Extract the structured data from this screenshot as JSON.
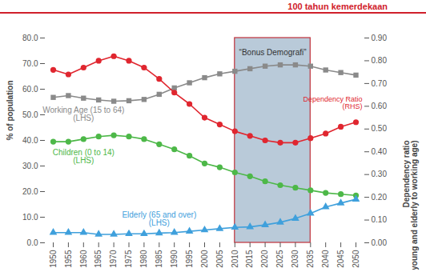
{
  "chart_data": {
    "type": "line",
    "title": "100 tahun kemerdekaan",
    "x": [
      1950,
      1955,
      1960,
      1965,
      1970,
      1975,
      1980,
      1985,
      1990,
      1995,
      2000,
      2005,
      2010,
      2015,
      2020,
      2025,
      2030,
      2035,
      2040,
      2045,
      2050
    ],
    "xlim": [
      1950,
      2050
    ],
    "xticks": [
      1950,
      1955,
      1960,
      1965,
      1970,
      1975,
      1980,
      1985,
      1990,
      1995,
      2000,
      2005,
      2010,
      2015,
      2020,
      2025,
      2030,
      2035,
      2040,
      2045,
      2050
    ],
    "ylabel": "% of population",
    "ylim": [
      0,
      80
    ],
    "yticks": [
      {
        "value": 0,
        "label": "0.0"
      },
      {
        "value": 10,
        "label": "10.0"
      },
      {
        "value": 20,
        "label": "20.0"
      },
      {
        "value": 30,
        "label": "30.0"
      },
      {
        "value": 40,
        "label": "40.0"
      },
      {
        "value": 50,
        "label": "50.0"
      },
      {
        "value": 60,
        "label": "60.0"
      },
      {
        "value": 70,
        "label": "70.0"
      },
      {
        "value": 80,
        "label": "80.0"
      }
    ],
    "y2label": "Dependency ratio\n(young and elderly to working age)",
    "y2lim": [
      0,
      0.9
    ],
    "y2ticks": [
      {
        "value": 0,
        "label": "0.00"
      },
      {
        "value": 0.1,
        "label": "0.10"
      },
      {
        "value": 0.2,
        "label": "0.20"
      },
      {
        "value": 0.3,
        "label": "0.30"
      },
      {
        "value": 0.4,
        "label": "0.40"
      },
      {
        "value": 0.5,
        "label": "0.50"
      },
      {
        "value": 0.6,
        "label": "0.60"
      },
      {
        "value": 0.7,
        "label": "0.70"
      },
      {
        "value": 0.8,
        "label": "0.80"
      },
      {
        "value": 0.9,
        "label": "0.90"
      }
    ],
    "grid": false,
    "annotations": [
      {
        "text": "“Bonus Demografi”",
        "x1": 2010,
        "x2": 2035
      }
    ],
    "series": [
      {
        "name": "Working Age (15 to 64)\n(LHS)",
        "color": "#8a8a8a",
        "marker": "square",
        "values": [
          56.8,
          57.5,
          56.5,
          55.8,
          55.3,
          55.5,
          56.0,
          58.0,
          60.5,
          62.5,
          64.5,
          66.0,
          67.0,
          68.0,
          69.0,
          69.5,
          69.5,
          69.0,
          67.5,
          66.5,
          65.5
        ]
      },
      {
        "name": "Dependency Ratio\n(RHS)",
        "color": "#e0262f",
        "marker": "circle",
        "axis": "y2",
        "values": [
          0.76,
          0.74,
          0.77,
          0.8,
          0.82,
          0.8,
          0.77,
          0.72,
          0.66,
          0.61,
          0.55,
          0.52,
          0.49,
          0.47,
          0.45,
          0.44,
          0.44,
          0.46,
          0.48,
          0.51,
          0.53
        ]
      },
      {
        "name": "Children (0 to 14)\n(LHS)",
        "color": "#4db848",
        "marker": "circle",
        "values": [
          39.5,
          39.5,
          40.5,
          41.5,
          42.0,
          41.5,
          40.5,
          38.5,
          36.5,
          34.0,
          31.0,
          29.5,
          27.5,
          26.0,
          24.0,
          22.5,
          21.5,
          20.5,
          19.5,
          19.0,
          18.5
        ]
      },
      {
        "name": "Elderly (65 and over)\n(LHS)",
        "color": "#3fa0dc",
        "marker": "triangle",
        "values": [
          4.0,
          4.0,
          4.0,
          3.3,
          3.3,
          3.5,
          3.5,
          3.8,
          4.0,
          4.5,
          5.0,
          5.5,
          6.0,
          6.2,
          7.0,
          8.0,
          9.5,
          11.5,
          14.0,
          15.5,
          17.0
        ]
      }
    ]
  }
}
